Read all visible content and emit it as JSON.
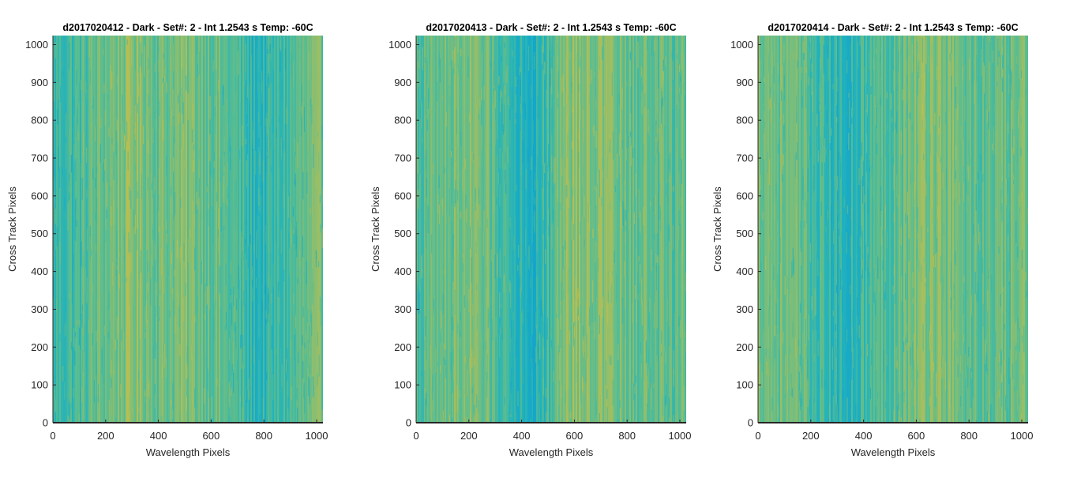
{
  "colormap": [
    "#0e9fd0",
    "#21b2bd",
    "#5bbd8f",
    "#a7be5e",
    "#d6bf3a"
  ],
  "chart_data": [
    {
      "type": "heatmap",
      "title": "d2017020412 - Dark - Set#: 2 - Int 1.2543 s Temp: -60C",
      "xlabel": "Wavelength Pixels",
      "ylabel": "Cross Track Pixels",
      "xlim": [
        0,
        1024
      ],
      "ylim": [
        0,
        1024
      ],
      "xticks": [
        0,
        200,
        400,
        600,
        800,
        1000
      ],
      "yticks": [
        0,
        100,
        200,
        300,
        400,
        500,
        600,
        700,
        800,
        900,
        1000
      ],
      "column_profile": {
        "x": [
          0,
          50,
          100,
          150,
          200,
          250,
          300,
          350,
          400,
          450,
          500,
          550,
          600,
          650,
          700,
          750,
          800,
          850,
          900,
          950,
          1024
        ],
        "value": [
          0.35,
          0.4,
          0.42,
          0.5,
          0.55,
          0.6,
          0.66,
          0.62,
          0.55,
          0.58,
          0.6,
          0.58,
          0.55,
          0.48,
          0.42,
          0.3,
          0.28,
          0.35,
          0.42,
          0.5,
          0.55
        ]
      }
    },
    {
      "type": "heatmap",
      "title": "d2017020413 - Dark - Set#: 2 - Int 1.2543 s Temp: -60C",
      "xlabel": "Wavelength Pixels",
      "ylabel": "Cross Track Pixels",
      "xlim": [
        0,
        1024
      ],
      "ylim": [
        0,
        1024
      ],
      "xticks": [
        0,
        200,
        400,
        600,
        800,
        1000
      ],
      "yticks": [
        0,
        100,
        200,
        300,
        400,
        500,
        600,
        700,
        800,
        900,
        1000
      ],
      "column_profile": {
        "x": [
          0,
          50,
          100,
          150,
          200,
          250,
          300,
          350,
          400,
          450,
          500,
          550,
          600,
          650,
          700,
          750,
          800,
          850,
          900,
          950,
          1024
        ],
        "value": [
          0.45,
          0.5,
          0.55,
          0.58,
          0.6,
          0.55,
          0.48,
          0.38,
          0.28,
          0.25,
          0.4,
          0.62,
          0.68,
          0.65,
          0.62,
          0.6,
          0.5,
          0.55,
          0.52,
          0.5,
          0.52
        ]
      }
    },
    {
      "type": "heatmap",
      "title": "d2017020414 - Dark - Set#: 2 - Int 1.2543 s Temp: -60C",
      "xlabel": "Wavelength Pixels",
      "ylabel": "Cross Track Pixels",
      "xlim": [
        0,
        1024
      ],
      "ylim": [
        0,
        1024
      ],
      "xticks": [
        0,
        200,
        400,
        600,
        800,
        1000
      ],
      "yticks": [
        0,
        100,
        200,
        300,
        400,
        500,
        600,
        700,
        800,
        900,
        1000
      ],
      "column_profile": {
        "x": [
          0,
          50,
          100,
          150,
          200,
          250,
          300,
          350,
          400,
          450,
          500,
          550,
          600,
          650,
          700,
          750,
          800,
          850,
          900,
          950,
          1024
        ],
        "value": [
          0.62,
          0.6,
          0.55,
          0.5,
          0.45,
          0.35,
          0.28,
          0.3,
          0.38,
          0.45,
          0.5,
          0.55,
          0.6,
          0.65,
          0.62,
          0.55,
          0.5,
          0.5,
          0.48,
          0.52,
          0.55
        ]
      }
    }
  ]
}
